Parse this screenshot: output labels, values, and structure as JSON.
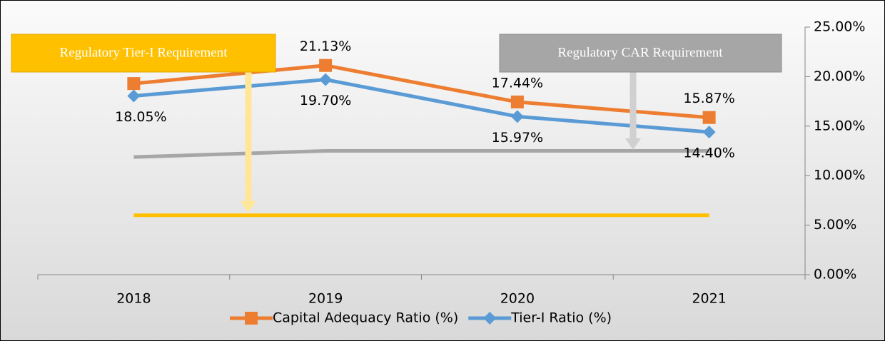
{
  "chart_data": {
    "type": "line",
    "categories": [
      "2018",
      "2019",
      "2020",
      "2021"
    ],
    "series": [
      {
        "name": "Capital Adequacy Ratio (%)",
        "color": "#ed7d31",
        "marker": "square",
        "values": [
          19.3,
          21.13,
          17.44,
          15.87
        ],
        "value_labels": [
          null,
          "21.13%",
          "17.44%",
          "15.87%"
        ]
      },
      {
        "name": "Tier-I Ratio (%)",
        "color": "#5b9bd5",
        "marker": "diamond",
        "values": [
          18.05,
          19.7,
          15.97,
          14.4
        ],
        "value_labels": [
          "18.05%",
          "19.70%",
          "15.97%",
          "14.40%"
        ]
      },
      {
        "color": "#a6a6a6",
        "values": [
          11.875,
          12.5,
          12.5,
          12.5
        ]
      },
      {
        "color": "#ffc000",
        "values": [
          6,
          6,
          6,
          6
        ]
      }
    ],
    "annotations": [
      {
        "text": "Regulatory Tier-I Requirement",
        "color": "#ffc000"
      },
      {
        "text": "Regulatory CAR Requirement",
        "color": "#a6a6a6"
      }
    ],
    "ylim": [
      0,
      25
    ],
    "yticks": [
      {
        "value": 0,
        "label": "0.00%"
      },
      {
        "value": 5,
        "label": "5.00%"
      },
      {
        "value": 10,
        "label": "10.00%"
      },
      {
        "value": 15,
        "label": "15.00%"
      },
      {
        "value": 20,
        "label": "20.00%"
      },
      {
        "value": 25,
        "label": "25.00%"
      }
    ],
    "yaxis_side": "right",
    "legend": "bottom"
  }
}
